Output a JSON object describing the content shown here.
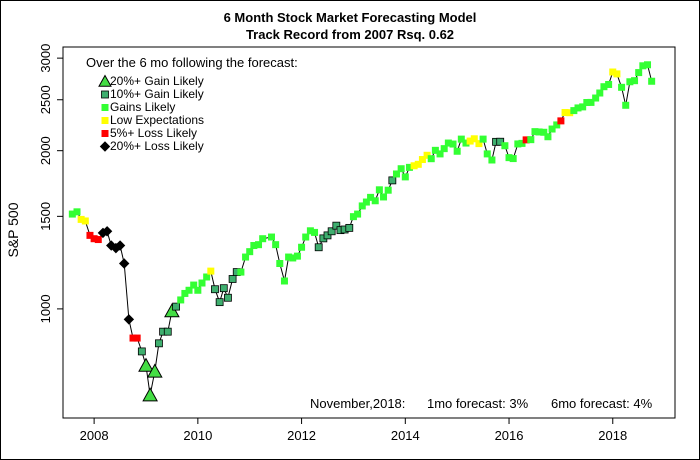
{
  "chart_data": {
    "type": "scatter",
    "title": "6 Month Stock Market Forecasting Model",
    "subtitle": "Track Record from 2007    Rsq. 0.62",
    "ylabel": "S&P 500",
    "xlabel": "",
    "y_scale": "log",
    "xlim": [
      2007.4,
      2019.2
    ],
    "ylim": [
      620,
      3150
    ],
    "x_ticks": [
      2008,
      2010,
      2012,
      2014,
      2016,
      2018
    ],
    "y_ticks": [
      1000,
      1500,
      2000,
      2500,
      3000
    ],
    "legend_title": "Over the 6 mo following the forecast:",
    "legend_position": "top-left",
    "grid": false,
    "categories": [
      {
        "key": "g20",
        "label": "20%+ Gain Likely",
        "color": "#44dd44",
        "marker": "triangle"
      },
      {
        "key": "g10",
        "label": "10%+ Gain Likely",
        "color": "#3faf6f",
        "marker": "square-outlined"
      },
      {
        "key": "gain",
        "label": "Gains Likely",
        "color": "#33ff33",
        "marker": "square"
      },
      {
        "key": "low",
        "label": "Low Expectations",
        "color": "#ffff00",
        "marker": "square"
      },
      {
        "key": "l5",
        "label": "5%+  Loss Likely",
        "color": "#ff0000",
        "marker": "square"
      },
      {
        "key": "l20",
        "label": "20%+  Loss Likely",
        "color": "#000000",
        "marker": "diamond"
      }
    ],
    "points": [
      {
        "x": 2007.58,
        "y": 1515,
        "c": "gain"
      },
      {
        "x": 2007.67,
        "y": 1530,
        "c": "gain"
      },
      {
        "x": 2007.75,
        "y": 1480,
        "c": "low"
      },
      {
        "x": 2007.83,
        "y": 1470,
        "c": "low"
      },
      {
        "x": 2007.92,
        "y": 1380,
        "c": "l5"
      },
      {
        "x": 2008.0,
        "y": 1360,
        "c": "l5"
      },
      {
        "x": 2008.08,
        "y": 1355,
        "c": "l5"
      },
      {
        "x": 2008.17,
        "y": 1395,
        "c": "l20"
      },
      {
        "x": 2008.25,
        "y": 1405,
        "c": "l20"
      },
      {
        "x": 2008.33,
        "y": 1320,
        "c": "l20"
      },
      {
        "x": 2008.42,
        "y": 1305,
        "c": "l20"
      },
      {
        "x": 2008.5,
        "y": 1320,
        "c": "l20"
      },
      {
        "x": 2008.58,
        "y": 1220,
        "c": "l20"
      },
      {
        "x": 2008.67,
        "y": 955,
        "c": "l20"
      },
      {
        "x": 2008.75,
        "y": 880,
        "c": "l5"
      },
      {
        "x": 2008.83,
        "y": 880,
        "c": "l5"
      },
      {
        "x": 2008.92,
        "y": 830,
        "c": "g10"
      },
      {
        "x": 2009.0,
        "y": 780,
        "c": "g20"
      },
      {
        "x": 2009.08,
        "y": 685,
        "c": "g20"
      },
      {
        "x": 2009.17,
        "y": 760,
        "c": "g20"
      },
      {
        "x": 2009.25,
        "y": 860,
        "c": "g10"
      },
      {
        "x": 2009.33,
        "y": 905,
        "c": "g10"
      },
      {
        "x": 2009.42,
        "y": 905,
        "c": "g10"
      },
      {
        "x": 2009.5,
        "y": 990,
        "c": "g20"
      },
      {
        "x": 2009.58,
        "y": 1010,
        "c": "g10"
      },
      {
        "x": 2009.67,
        "y": 1040,
        "c": "gain"
      },
      {
        "x": 2009.75,
        "y": 1070,
        "c": "gain"
      },
      {
        "x": 2009.83,
        "y": 1085,
        "c": "gain"
      },
      {
        "x": 2009.92,
        "y": 1110,
        "c": "gain"
      },
      {
        "x": 2010.0,
        "y": 1085,
        "c": "gain"
      },
      {
        "x": 2010.08,
        "y": 1120,
        "c": "gain"
      },
      {
        "x": 2010.17,
        "y": 1150,
        "c": "gain"
      },
      {
        "x": 2010.25,
        "y": 1180,
        "c": "low"
      },
      {
        "x": 2010.33,
        "y": 1090,
        "c": "g10"
      },
      {
        "x": 2010.42,
        "y": 1030,
        "c": "g10"
      },
      {
        "x": 2010.5,
        "y": 1095,
        "c": "g10"
      },
      {
        "x": 2010.58,
        "y": 1050,
        "c": "g10"
      },
      {
        "x": 2010.67,
        "y": 1140,
        "c": "g10"
      },
      {
        "x": 2010.75,
        "y": 1175,
        "c": "g10"
      },
      {
        "x": 2010.83,
        "y": 1175,
        "c": "gain"
      },
      {
        "x": 2010.92,
        "y": 1255,
        "c": "gain"
      },
      {
        "x": 2011.0,
        "y": 1285,
        "c": "gain"
      },
      {
        "x": 2011.08,
        "y": 1320,
        "c": "gain"
      },
      {
        "x": 2011.17,
        "y": 1325,
        "c": "gain"
      },
      {
        "x": 2011.25,
        "y": 1360,
        "c": "gain"
      },
      {
        "x": 2011.42,
        "y": 1370,
        "c": "gain"
      },
      {
        "x": 2011.5,
        "y": 1325,
        "c": "gain"
      },
      {
        "x": 2011.58,
        "y": 1220,
        "c": "gain"
      },
      {
        "x": 2011.67,
        "y": 1130,
        "c": "gain"
      },
      {
        "x": 2011.75,
        "y": 1255,
        "c": "gain"
      },
      {
        "x": 2011.83,
        "y": 1250,
        "c": "gain"
      },
      {
        "x": 2011.92,
        "y": 1260,
        "c": "gain"
      },
      {
        "x": 2012.0,
        "y": 1310,
        "c": "gain"
      },
      {
        "x": 2012.08,
        "y": 1370,
        "c": "gain"
      },
      {
        "x": 2012.17,
        "y": 1408,
        "c": "gain"
      },
      {
        "x": 2012.25,
        "y": 1398,
        "c": "gain"
      },
      {
        "x": 2012.33,
        "y": 1310,
        "c": "g10"
      },
      {
        "x": 2012.42,
        "y": 1362,
        "c": "g10"
      },
      {
        "x": 2012.5,
        "y": 1380,
        "c": "g10"
      },
      {
        "x": 2012.58,
        "y": 1405,
        "c": "g10"
      },
      {
        "x": 2012.67,
        "y": 1440,
        "c": "g10"
      },
      {
        "x": 2012.75,
        "y": 1412,
        "c": "g10"
      },
      {
        "x": 2012.83,
        "y": 1416,
        "c": "g10"
      },
      {
        "x": 2012.92,
        "y": 1426,
        "c": "g10"
      },
      {
        "x": 2013.0,
        "y": 1498,
        "c": "gain"
      },
      {
        "x": 2013.08,
        "y": 1515,
        "c": "gain"
      },
      {
        "x": 2013.17,
        "y": 1570,
        "c": "gain"
      },
      {
        "x": 2013.25,
        "y": 1597,
        "c": "gain"
      },
      {
        "x": 2013.33,
        "y": 1630,
        "c": "gain"
      },
      {
        "x": 2013.42,
        "y": 1606,
        "c": "gain"
      },
      {
        "x": 2013.5,
        "y": 1685,
        "c": "gain"
      },
      {
        "x": 2013.58,
        "y": 1633,
        "c": "gain"
      },
      {
        "x": 2013.67,
        "y": 1682,
        "c": "gain"
      },
      {
        "x": 2013.75,
        "y": 1756,
        "c": "g10"
      },
      {
        "x": 2013.83,
        "y": 1806,
        "c": "gain"
      },
      {
        "x": 2013.92,
        "y": 1848,
        "c": "gain"
      },
      {
        "x": 2014.0,
        "y": 1783,
        "c": "gain"
      },
      {
        "x": 2014.08,
        "y": 1859,
        "c": "gain"
      },
      {
        "x": 2014.17,
        "y": 1872,
        "c": "low"
      },
      {
        "x": 2014.25,
        "y": 1884,
        "c": "low"
      },
      {
        "x": 2014.33,
        "y": 1924,
        "c": "low"
      },
      {
        "x": 2014.42,
        "y": 1960,
        "c": "low"
      },
      {
        "x": 2014.5,
        "y": 1931,
        "c": "gain"
      },
      {
        "x": 2014.58,
        "y": 2003,
        "c": "gain"
      },
      {
        "x": 2014.67,
        "y": 1972,
        "c": "gain"
      },
      {
        "x": 2014.75,
        "y": 2018,
        "c": "gain"
      },
      {
        "x": 2014.83,
        "y": 2068,
        "c": "gain"
      },
      {
        "x": 2014.92,
        "y": 2059,
        "c": "gain"
      },
      {
        "x": 2015.0,
        "y": 1995,
        "c": "gain"
      },
      {
        "x": 2015.08,
        "y": 2104,
        "c": "gain"
      },
      {
        "x": 2015.17,
        "y": 2068,
        "c": "gain"
      },
      {
        "x": 2015.25,
        "y": 2086,
        "c": "low"
      },
      {
        "x": 2015.33,
        "y": 2107,
        "c": "low"
      },
      {
        "x": 2015.42,
        "y": 2063,
        "c": "low"
      },
      {
        "x": 2015.5,
        "y": 2104,
        "c": "gain"
      },
      {
        "x": 2015.58,
        "y": 1972,
        "c": "gain"
      },
      {
        "x": 2015.67,
        "y": 1920,
        "c": "gain"
      },
      {
        "x": 2015.75,
        "y": 2079,
        "c": "g10"
      },
      {
        "x": 2015.83,
        "y": 2080,
        "c": "g10"
      },
      {
        "x": 2015.92,
        "y": 2044,
        "c": "gain"
      },
      {
        "x": 2016.0,
        "y": 1940,
        "c": "gain"
      },
      {
        "x": 2016.08,
        "y": 1932,
        "c": "gain"
      },
      {
        "x": 2016.17,
        "y": 2060,
        "c": "gain"
      },
      {
        "x": 2016.25,
        "y": 2065,
        "c": "gain"
      },
      {
        "x": 2016.33,
        "y": 2097,
        "c": "l5"
      },
      {
        "x": 2016.42,
        "y": 2099,
        "c": "gain"
      },
      {
        "x": 2016.5,
        "y": 2174,
        "c": "gain"
      },
      {
        "x": 2016.58,
        "y": 2171,
        "c": "gain"
      },
      {
        "x": 2016.67,
        "y": 2168,
        "c": "gain"
      },
      {
        "x": 2016.75,
        "y": 2126,
        "c": "gain"
      },
      {
        "x": 2016.83,
        "y": 2199,
        "c": "gain"
      },
      {
        "x": 2016.92,
        "y": 2239,
        "c": "gain"
      },
      {
        "x": 2017.0,
        "y": 2279,
        "c": "l5"
      },
      {
        "x": 2017.08,
        "y": 2364,
        "c": "low"
      },
      {
        "x": 2017.17,
        "y": 2362,
        "c": "low"
      },
      {
        "x": 2017.25,
        "y": 2384,
        "c": "gain"
      },
      {
        "x": 2017.33,
        "y": 2412,
        "c": "gain"
      },
      {
        "x": 2017.42,
        "y": 2423,
        "c": "gain"
      },
      {
        "x": 2017.5,
        "y": 2470,
        "c": "gain"
      },
      {
        "x": 2017.58,
        "y": 2471,
        "c": "gain"
      },
      {
        "x": 2017.67,
        "y": 2519,
        "c": "gain"
      },
      {
        "x": 2017.75,
        "y": 2575,
        "c": "gain"
      },
      {
        "x": 2017.83,
        "y": 2647,
        "c": "gain"
      },
      {
        "x": 2017.92,
        "y": 2673,
        "c": "gain"
      },
      {
        "x": 2018.0,
        "y": 2823,
        "c": "low"
      },
      {
        "x": 2018.08,
        "y": 2800,
        "c": "low"
      },
      {
        "x": 2018.17,
        "y": 2640,
        "c": "gain"
      },
      {
        "x": 2018.25,
        "y": 2440,
        "c": "gain"
      },
      {
        "x": 2018.33,
        "y": 2705,
        "c": "gain"
      },
      {
        "x": 2018.42,
        "y": 2718,
        "c": "gain"
      },
      {
        "x": 2018.5,
        "y": 2816,
        "c": "gain"
      },
      {
        "x": 2018.58,
        "y": 2901,
        "c": "gain"
      },
      {
        "x": 2018.67,
        "y": 2914,
        "c": "gain"
      },
      {
        "x": 2018.75,
        "y": 2711,
        "c": "gain"
      }
    ]
  },
  "footer": {
    "month": "November,2018:",
    "one_month": "1mo forecast: 3%",
    "six_month": "6mo forecast: 4%"
  }
}
